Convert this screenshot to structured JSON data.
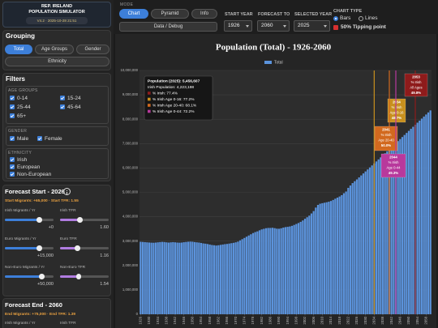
{
  "app": {
    "title1": "REP. IRELAND",
    "title2": "POPULATION SIMULATOR",
    "version": "V4.2 · 2025-10-28 21:51"
  },
  "grouping": {
    "title": "Grouping",
    "options": [
      "Total",
      "Age Groups",
      "Gender",
      "Ethnicity"
    ]
  },
  "filters": {
    "title": "Filters",
    "age_title": "AGE GROUPS",
    "age": [
      "0-14",
      "15-24",
      "25-44",
      "45-64",
      "65+"
    ],
    "gender_title": "GENDER",
    "gender": [
      "Male",
      "Female"
    ],
    "ethnicity_title": "ETHNICITY",
    "ethnicity": [
      "Irish",
      "European",
      "Non-European"
    ]
  },
  "forecast_start": {
    "title": "Forecast Start - 2026",
    "summary": "Start Migrants: +65,000 · Start TFR: 1.55",
    "sliders": [
      {
        "label": "Irish Migrants / Yr",
        "value": "+0"
      },
      {
        "label": "Irish TFR",
        "value": "1.60"
      },
      {
        "label": "Euro Migrants / Yr",
        "value": "+15,000"
      },
      {
        "label": "Euro TFR",
        "value": "1.16"
      },
      {
        "label": "Non-Euro Migrants / Yr",
        "value": "+50,000"
      },
      {
        "label": "Non-Euro TFR",
        "value": "1.54"
      }
    ]
  },
  "forecast_end": {
    "title": "Forecast End - 2060",
    "summary": "End Migrants: +75,000 · End TFR: 1.39",
    "sliders": [
      {
        "label": "Irish Migrants / Yr"
      },
      {
        "label": "Irish TFR"
      }
    ]
  },
  "controls": {
    "mode_label": "MODE",
    "modes": [
      "Chart",
      "Pyramid",
      "Info"
    ],
    "debug": "Data / Debug",
    "start_year_label": "START YEAR",
    "start_year": 1926,
    "forecast_label": "FORECAST TO",
    "forecast": 2060,
    "selected_label": "SELECTED YEAR",
    "selected": 2025,
    "chart_type_label": "CHART TYPE",
    "chart_types": [
      "Bars",
      "Lines"
    ],
    "tipping": "50% Tipping point"
  },
  "chart_data": {
    "type": "bar",
    "title": "Population (Total) - 1926-2060",
    "x": [
      1926,
      1927,
      1928,
      1929,
      1930,
      1931,
      1932,
      1933,
      1934,
      1935,
      1936,
      1937,
      1938,
      1939,
      1940,
      1941,
      1942,
      1943,
      1944,
      1945,
      1946,
      1947,
      1948,
      1949,
      1950,
      1951,
      1952,
      1953,
      1954,
      1955,
      1956,
      1957,
      1958,
      1959,
      1960,
      1961,
      1962,
      1963,
      1964,
      1965,
      1966,
      1967,
      1968,
      1969,
      1970,
      1971,
      1972,
      1973,
      1974,
      1975,
      1976,
      1977,
      1978,
      1979,
      1980,
      1981,
      1982,
      1983,
      1984,
      1985,
      1986,
      1987,
      1988,
      1989,
      1990,
      1991,
      1992,
      1993,
      1994,
      1995,
      1996,
      1997,
      1998,
      1999,
      2000,
      2001,
      2002,
      2003,
      2004,
      2005,
      2006,
      2007,
      2008,
      2009,
      2010,
      2011,
      2012,
      2013,
      2014,
      2015,
      2016,
      2017,
      2018,
      2019,
      2020,
      2021,
      2022,
      2023,
      2024,
      2025,
      2026,
      2027,
      2028,
      2029,
      2030,
      2031,
      2032,
      2033,
      2034,
      2035,
      2036,
      2037,
      2038,
      2039,
      2040,
      2041,
      2042,
      2043,
      2044,
      2045,
      2046,
      2047,
      2048,
      2049,
      2050,
      2051,
      2052,
      2053,
      2054,
      2055,
      2056,
      2057,
      2058,
      2059,
      2060
    ],
    "series": [
      {
        "name": "Total",
        "color": "#5b93dc",
        "values": [
          2972000,
          2965000,
          2958000,
          2950000,
          2942000,
          2936000,
          2933000,
          2940000,
          2950000,
          2960000,
          2968000,
          2962000,
          2950000,
          2940000,
          2950000,
          2958000,
          2950000,
          2940000,
          2935000,
          2940000,
          2955000,
          2965000,
          2975000,
          2980000,
          2975000,
          2961000,
          2950000,
          2940000,
          2925000,
          2905000,
          2895000,
          2880000,
          2860000,
          2840000,
          2830000,
          2818000,
          2830000,
          2845000,
          2860000,
          2875000,
          2884000,
          2900000,
          2915000,
          2930000,
          2950000,
          2978000,
          3030000,
          3080000,
          3130000,
          3180000,
          3230000,
          3280000,
          3330000,
          3370000,
          3400000,
          3443000,
          3480000,
          3505000,
          3529000,
          3540000,
          3540000,
          3547000,
          3531000,
          3510000,
          3506000,
          3526000,
          3555000,
          3574000,
          3586000,
          3601000,
          3626000,
          3664000,
          3703000,
          3742000,
          3790000,
          3847000,
          3917000,
          3979000,
          4045000,
          4134000,
          4232000,
          4375000,
          4485000,
          4534000,
          4555000,
          4574000,
          4593000,
          4615000,
          4646000,
          4688000,
          4739000,
          4784000,
          4830000,
          4885000,
          4964000,
          5034000,
          5184000,
          5281000,
          5380000,
          5456607,
          5530000,
          5612000,
          5694000,
          5776000,
          5858000,
          5940000,
          6022000,
          6104000,
          6186000,
          6268000,
          6351000,
          6434000,
          6517000,
          6600000,
          6683000,
          6766000,
          6850000,
          6934000,
          7018000,
          7102000,
          7186000,
          7270000,
          7354000,
          7438000,
          7522000,
          7606000,
          7690000,
          7774000,
          7858000,
          7942000,
          8026000,
          8110000,
          8194000,
          8278000,
          8362000
        ]
      }
    ],
    "xlim": [
      1925.5,
      2060.5
    ],
    "xticks": [
      1926,
      1930,
      1934,
      1938,
      1942,
      1946,
      1950,
      1954,
      1958,
      1962,
      1966,
      1970,
      1974,
      1978,
      1982,
      1986,
      1990,
      1994,
      1998,
      2002,
      2006,
      2010,
      2014,
      2018,
      2022,
      2026,
      2030,
      2034,
      2038,
      2042,
      2046,
      2050,
      2054,
      2058
    ],
    "ylim": [
      0,
      10000000
    ],
    "yticks": [
      0,
      {
        "value": 1000000,
        "label": "1,000,000"
      },
      {
        "value": 2000000,
        "label": "2,000,000"
      },
      {
        "value": 3000000,
        "label": "3,000,000"
      },
      {
        "value": 4000000,
        "label": "4,000,000"
      },
      {
        "value": 5000000,
        "label": "5,000,000"
      },
      {
        "value": 6000000,
        "label": "6,000,000"
      },
      {
        "value": 7000000,
        "label": "7,000,000"
      },
      {
        "value": 8000000,
        "label": "8,000,000"
      },
      {
        "value": 9000000,
        "label": "9,000,000"
      },
      {
        "value": 10000000,
        "label": "10,000,000"
      }
    ],
    "grid": true,
    "tooltip": {
      "lines": [
        "Population (2025): 5,456,607",
        "Irish Population: 4,223,198"
      ],
      "items": [
        {
          "text": "% Irish: 77.4%",
          "color": "#8e1b1b"
        },
        {
          "text": "% Irish Age 0-16: 77.2%",
          "color": "#c8901e"
        },
        {
          "text": "% Irish Age 20-40: 68.1%",
          "color": "#d2691e"
        },
        {
          "text": "% Irish Age 0-44: 72.2%",
          "color": "#b8399c"
        }
      ]
    },
    "tipping_points": [
      {
        "year": 2053,
        "lines": [
          "% Irish",
          "All Ages"
        ],
        "value": "49.8%",
        "color": "#8e1b1b"
      },
      {
        "year": 2034,
        "lines": [
          "% Irish",
          "Age 0-16"
        ],
        "value": "48.7%",
        "color": "#c8901e"
      },
      {
        "year": 2041,
        "lines": [
          "% Irish",
          "Age 20-40"
        ],
        "value": "50.0%",
        "color": "#d2691e"
      },
      {
        "year": 2044,
        "lines": [
          "% Irish",
          "Age 0-44"
        ],
        "value": "49.3%",
        "color": "#b8399c"
      }
    ]
  }
}
